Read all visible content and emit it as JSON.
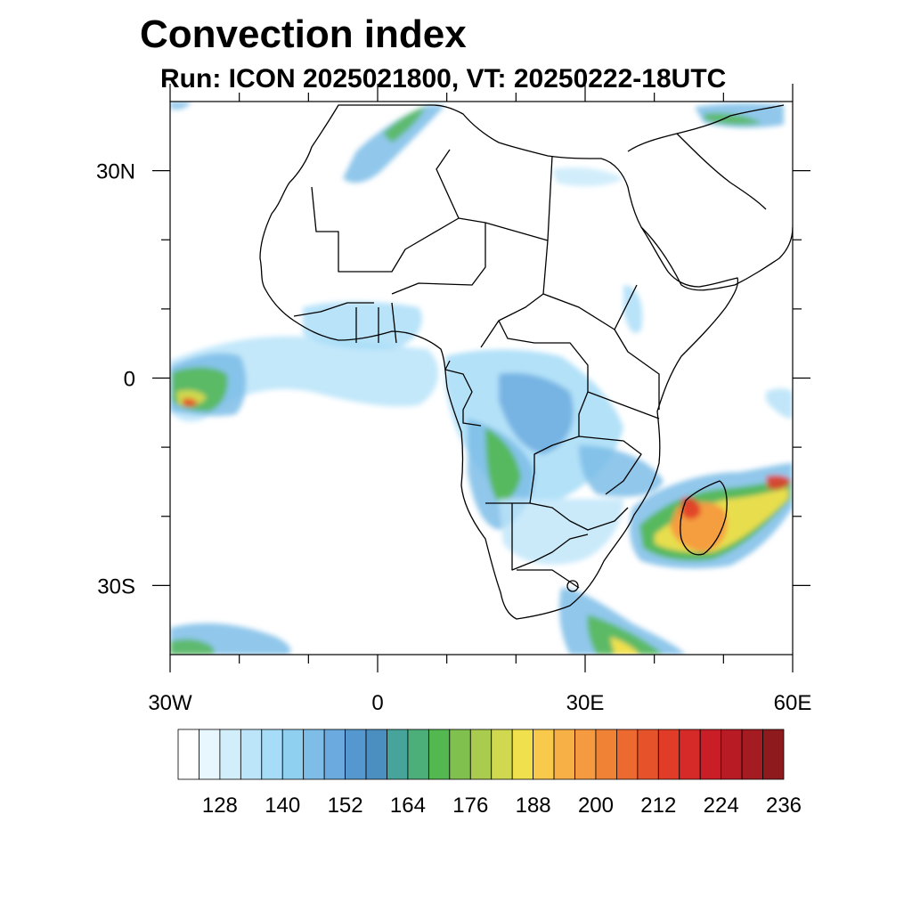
{
  "title": "Convection index",
  "subtitle": "Run: ICON 2025021800,  VT: 20250222-18UTC",
  "map": {
    "lon_range": [
      -30,
      60
    ],
    "lat_range": [
      -40,
      40
    ],
    "lat_labels": [
      {
        "lat": 30,
        "label": "30N"
      },
      {
        "lat": 0,
        "label": "0"
      },
      {
        "lat": -30,
        "label": "30S"
      }
    ],
    "lon_labels": [
      {
        "lon": -30,
        "label": "30W"
      },
      {
        "lon": 0,
        "label": "0"
      },
      {
        "lon": 30,
        "label": "30E"
      },
      {
        "lon": 60,
        "label": "60E"
      }
    ]
  },
  "colorbar": {
    "colors": [
      "#ffffff",
      "#e8f6fd",
      "#d2eefb",
      "#bde5f9",
      "#a6dcf7",
      "#8fcff0",
      "#7dbde8",
      "#6aaade",
      "#5598cf",
      "#4a8fc0",
      "#46a49a",
      "#4cae79",
      "#53b84f",
      "#7fc04e",
      "#a9cc4e",
      "#cfd84e",
      "#f0e04e",
      "#f8c94a",
      "#f7b045",
      "#f59a40",
      "#f08236",
      "#ec6a2f",
      "#e65229",
      "#e03c28",
      "#d62a28",
      "#c91e27",
      "#b81b24",
      "#a41b21",
      "#8f1a1d"
    ],
    "labels": [
      "128",
      "140",
      "152",
      "164",
      "176",
      "188",
      "200",
      "212",
      "224",
      "236"
    ]
  }
}
